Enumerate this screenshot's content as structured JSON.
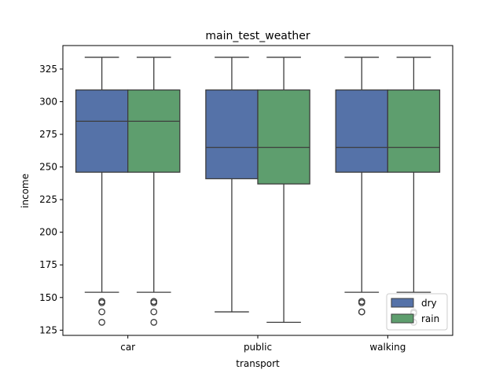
{
  "chart_data": {
    "type": "box",
    "title": "main_test_weather",
    "xlabel": "transport",
    "ylabel": "income",
    "categories": [
      "car",
      "public",
      "walking"
    ],
    "ylim": [
      121,
      343
    ],
    "yticks": [
      125,
      150,
      175,
      200,
      225,
      250,
      275,
      300,
      325
    ],
    "grid": false,
    "legend_position": "lower-right",
    "series": [
      {
        "name": "dry",
        "color": "#5572a8",
        "boxes": [
          {
            "category": "car",
            "whisker_low": 154,
            "q1": 246,
            "median": 285,
            "q3": 309,
            "whisker_high": 334,
            "outliers": [
              147,
              146,
              139,
              131
            ]
          },
          {
            "category": "public",
            "whisker_low": 139,
            "q1": 241,
            "median": 265,
            "q3": 309,
            "whisker_high": 334,
            "outliers": []
          },
          {
            "category": "walking",
            "whisker_low": 154,
            "q1": 246,
            "median": 265,
            "q3": 309,
            "whisker_high": 334,
            "outliers": [
              147,
              146,
              139,
              139
            ]
          }
        ]
      },
      {
        "name": "rain",
        "color": "#5e9e6e",
        "boxes": [
          {
            "category": "car",
            "whisker_low": 154,
            "q1": 246,
            "median": 285,
            "q3": 309,
            "whisker_high": 334,
            "outliers": [
              147,
              146,
              139,
              131
            ]
          },
          {
            "category": "public",
            "whisker_low": 131,
            "q1": 237,
            "median": 265,
            "q3": 309,
            "whisker_high": 334,
            "outliers": []
          },
          {
            "category": "walking",
            "whisker_low": 154,
            "q1": 246,
            "median": 265,
            "q3": 309,
            "whisker_high": 334,
            "outliers": [
              139,
              138,
              131
            ]
          }
        ]
      }
    ]
  }
}
